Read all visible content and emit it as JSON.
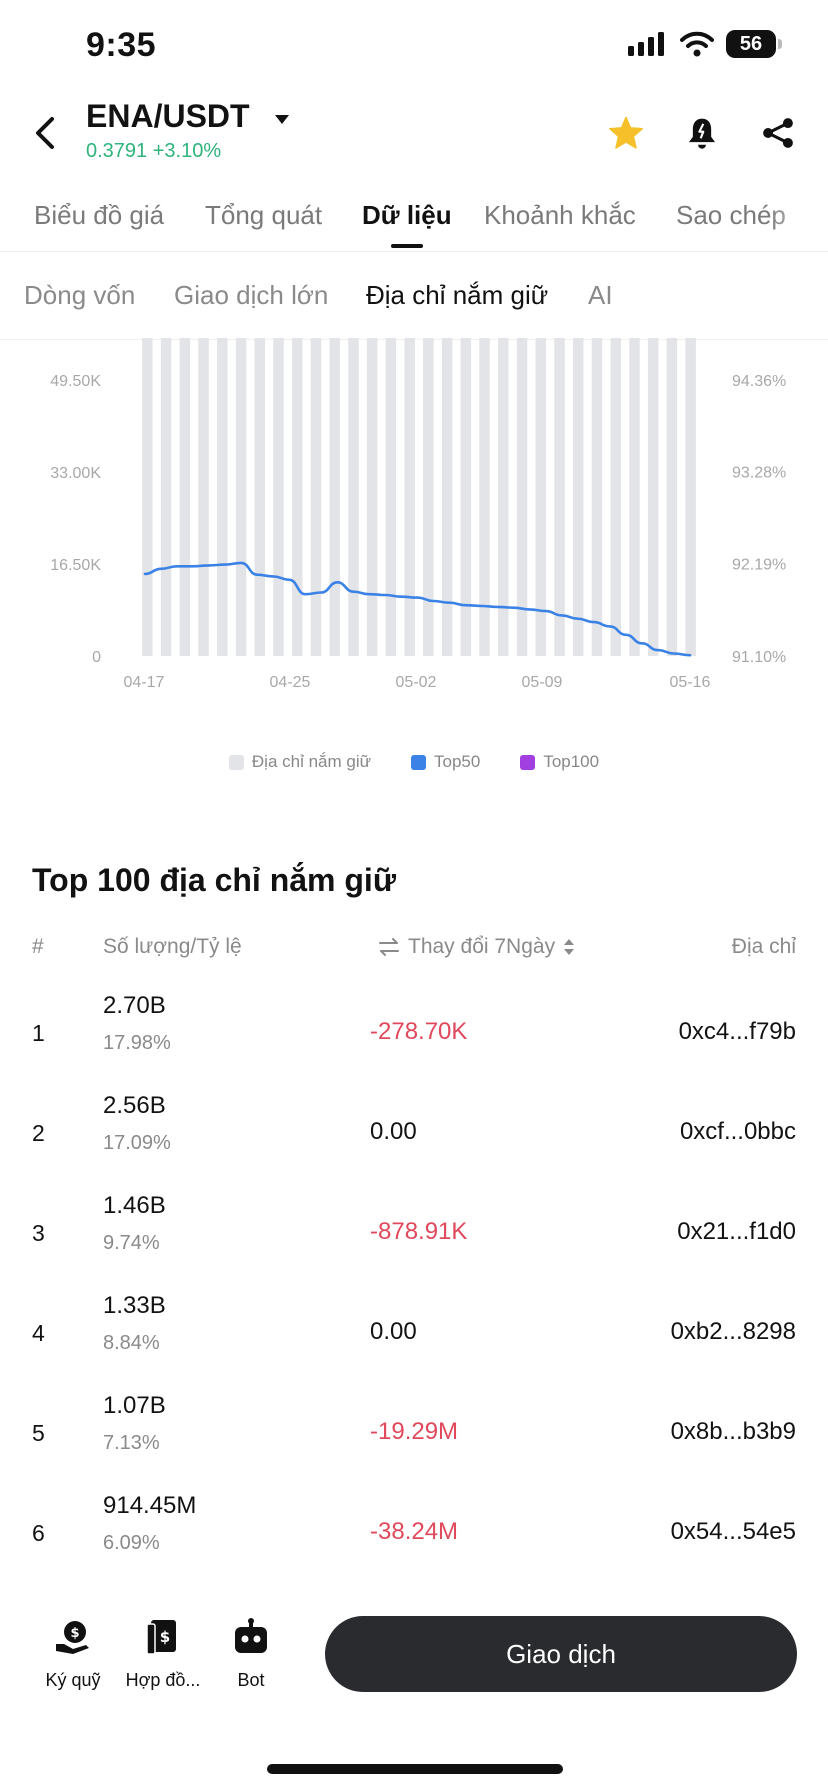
{
  "status_bar": {
    "time": "9:35",
    "battery": "56"
  },
  "header": {
    "pair": "ENA/USDT",
    "price": "0.3791",
    "change": "+3.10%"
  },
  "tabs": [
    {
      "label": "Biểu đồ giá"
    },
    {
      "label": "Tổng quát"
    },
    {
      "label": "Dữ liệu"
    },
    {
      "label": "Khoảnh khắc"
    },
    {
      "label": "Sao chép"
    }
  ],
  "subtabs": [
    {
      "label": "Dòng vốn"
    },
    {
      "label": "Giao dịch lớn"
    },
    {
      "label": "Địa chỉ nắm giữ"
    },
    {
      "label": "AI"
    }
  ],
  "chart_data": {
    "type": "bar",
    "y_left_ticks": [
      "49.50K",
      "33.00K",
      "16.50K",
      "0"
    ],
    "y_right_ticks": [
      "94.36%",
      "93.28%",
      "92.19%",
      "91.10%"
    ],
    "ylim_left": [
      0,
      49500
    ],
    "ylim_right": [
      91.1,
      94.36
    ],
    "x_tick_labels": [
      "04-17",
      "04-25",
      "05-02",
      "05-09",
      "05-16"
    ],
    "bars_count": 30,
    "bar_value": 49500,
    "bar_color": "#e3e4e7",
    "line_color": "#3b82e6",
    "series": [
      {
        "name": "Địa chỉ nắm giữ",
        "color": "#e3e4e7"
      },
      {
        "name": "Top50",
        "color": "#3b82e6",
        "values": [
          92.07,
          92.13,
          92.16,
          92.16,
          92.17,
          92.18,
          92.2,
          92.06,
          92.04,
          92.0,
          91.83,
          91.85,
          91.97,
          91.86,
          91.83,
          91.82,
          91.8,
          91.79,
          91.75,
          91.73,
          91.7,
          91.69,
          91.68,
          91.67,
          91.65,
          91.63,
          91.58,
          91.54,
          91.5,
          91.45,
          91.35,
          91.25,
          91.17,
          91.13,
          91.11
        ]
      },
      {
        "name": "Top100",
        "color": "#a23fe0"
      }
    ],
    "grid": false,
    "legend": "bottom"
  },
  "table": {
    "title": "Top 100 địa chỉ nắm giữ",
    "headers": {
      "idx": "#",
      "qty": "Số lượng/Tỷ lệ",
      "change": "Thay đổi 7Ngày",
      "addr": "Địa chỉ"
    },
    "rows": [
      {
        "idx": "1",
        "qty": "2.70B",
        "pct": "17.98%",
        "change": "-278.70K",
        "addr": "0xc4...f79b",
        "neg": true
      },
      {
        "idx": "2",
        "qty": "2.56B",
        "pct": "17.09%",
        "change": "0.00",
        "addr": "0xcf...0bbc",
        "neg": false
      },
      {
        "idx": "3",
        "qty": "1.46B",
        "pct": "9.74%",
        "change": "-878.91K",
        "addr": "0x21...f1d0",
        "neg": true
      },
      {
        "idx": "4",
        "qty": "1.33B",
        "pct": "8.84%",
        "change": "0.00",
        "addr": "0xb2...8298",
        "neg": false
      },
      {
        "idx": "5",
        "qty": "1.07B",
        "pct": "7.13%",
        "change": "-19.29M",
        "addr": "0x8b...b3b9",
        "neg": true
      },
      {
        "idx": "6",
        "qty": "914.45M",
        "pct": "6.09%",
        "change": "-38.24M",
        "addr": "0x54...54e5",
        "neg": true
      }
    ]
  },
  "bottom_bar": {
    "items": [
      {
        "label": "Ký quỹ",
        "icon": "margin-icon"
      },
      {
        "label": "Hợp đồ...",
        "icon": "contract-icon"
      },
      {
        "label": "Bot",
        "icon": "bot-icon"
      }
    ],
    "trade_label": "Giao dịch"
  },
  "colors": {
    "positive": "#2fb47c",
    "negative": "#e0485b",
    "star": "#f5c02a"
  }
}
